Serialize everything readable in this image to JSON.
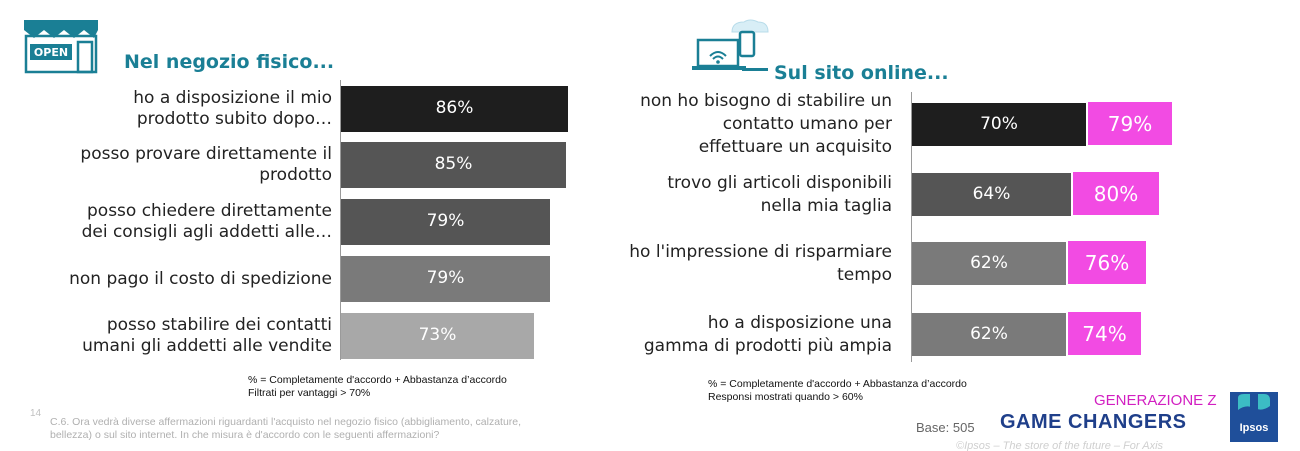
{
  "chart_data": [
    {
      "type": "bar",
      "orientation": "horizontal",
      "title": "Nel negozio fisico...",
      "categories": [
        [
          "ho a disposizione il mio",
          "prodotto subito dopo…"
        ],
        [
          "posso provare direttamente il",
          "prodotto"
        ],
        [
          "posso chiedere direttamente",
          "dei consigli agli addetti alle…"
        ],
        [
          "non pago il costo di spedizione"
        ],
        [
          "posso stabilire dei contatti",
          "umani  gli addetti alle vendite"
        ]
      ],
      "values": [
        86,
        85,
        79,
        79,
        73
      ],
      "value_labels": [
        "86%",
        "85%",
        "79%",
        "79%",
        "73%"
      ],
      "colors": [
        "#1e1e1e",
        "#555555",
        "#555555",
        "#7a7a7a",
        "#a8a8a8"
      ],
      "xlim": [
        0,
        100
      ],
      "note": [
        "% = Completamente d'accordo + Abbastanza d’accordo",
        "Filtrati per vantaggi > 70%"
      ]
    },
    {
      "type": "bar",
      "orientation": "horizontal",
      "title": "Sul sito online...",
      "categories": [
        [
          "non ho bisogno di stabilire un",
          "contatto umano per",
          "effettuare un acquisito"
        ],
        [
          "trovo gli articoli disponibili",
          "nella mia taglia"
        ],
        [
          "ho l'impressione di risparmiare",
          "tempo"
        ],
        [
          "ho a disposizione una",
          "gamma di prodotti più ampia"
        ]
      ],
      "series": [
        {
          "values": [
            70,
            64,
            62,
            62
          ],
          "labels": [
            "70%",
            "64%",
            "62%",
            "62%"
          ],
          "colors": [
            "#1e1e1e",
            "#555555",
            "#7a7a7a",
            "#7a7a7a"
          ]
        },
        {
          "values": [
            79,
            80,
            76,
            74
          ],
          "labels": [
            "79%",
            "80%",
            "76%",
            "74%"
          ],
          "color": "#f24be3"
        }
      ],
      "xlim": [
        0,
        100
      ],
      "note": [
        "% = Completamente d'accordo + Abbastanza d’accordo",
        "Responsi mostrati quando > 60%"
      ]
    }
  ],
  "footer": {
    "page_number": "14",
    "question": [
      "C.6. Ora vedrà diverse affermazioni riguardanti l'acquisto nel negozio fisico (abbigliamento, calzature,",
      "bellezza) o sul sito internet.  In che misura è d'accordo con le seguenti affermazioni?"
    ],
    "base": "Base: 505",
    "gen_z": "GENERAZIONE Z",
    "game_changers": "GAME CHANGERS",
    "copyright": "©Ipsos – The store of the future  – For Axis",
    "ipsos": "Ipsos"
  },
  "icons": {
    "store": "shop-open-icon",
    "online": "laptop-phone-cloud-icon"
  },
  "store_sign": "OPEN"
}
